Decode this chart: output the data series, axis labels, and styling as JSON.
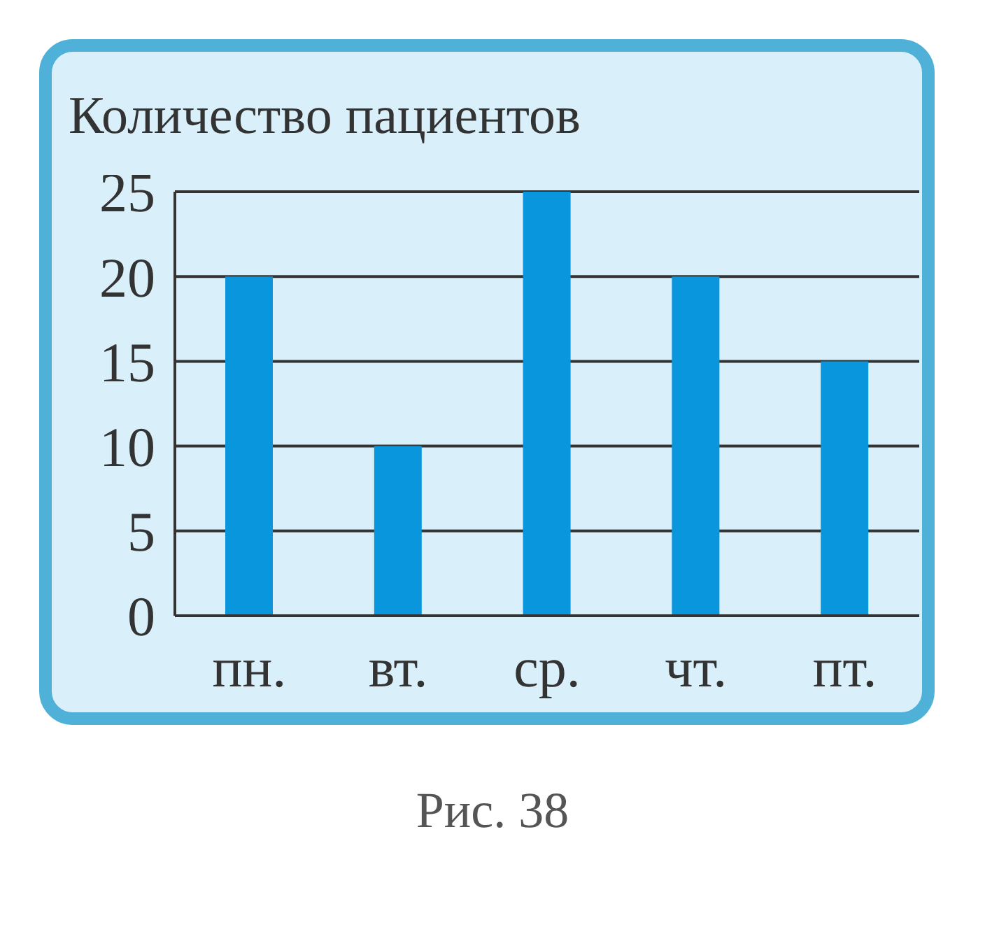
{
  "chart_data": {
    "type": "bar",
    "title": "Количество пациентов",
    "categories": [
      "пн.",
      "вт.",
      "ср.",
      "чт.",
      "пт."
    ],
    "values": [
      20,
      10,
      25,
      20,
      15
    ],
    "color": "#0a96dc",
    "ylim": [
      0,
      25
    ],
    "yticks": [
      0,
      5,
      10,
      15,
      20,
      25
    ],
    "grid": "y",
    "legend": false,
    "annotations": [
      "Рис. 38"
    ]
  }
}
